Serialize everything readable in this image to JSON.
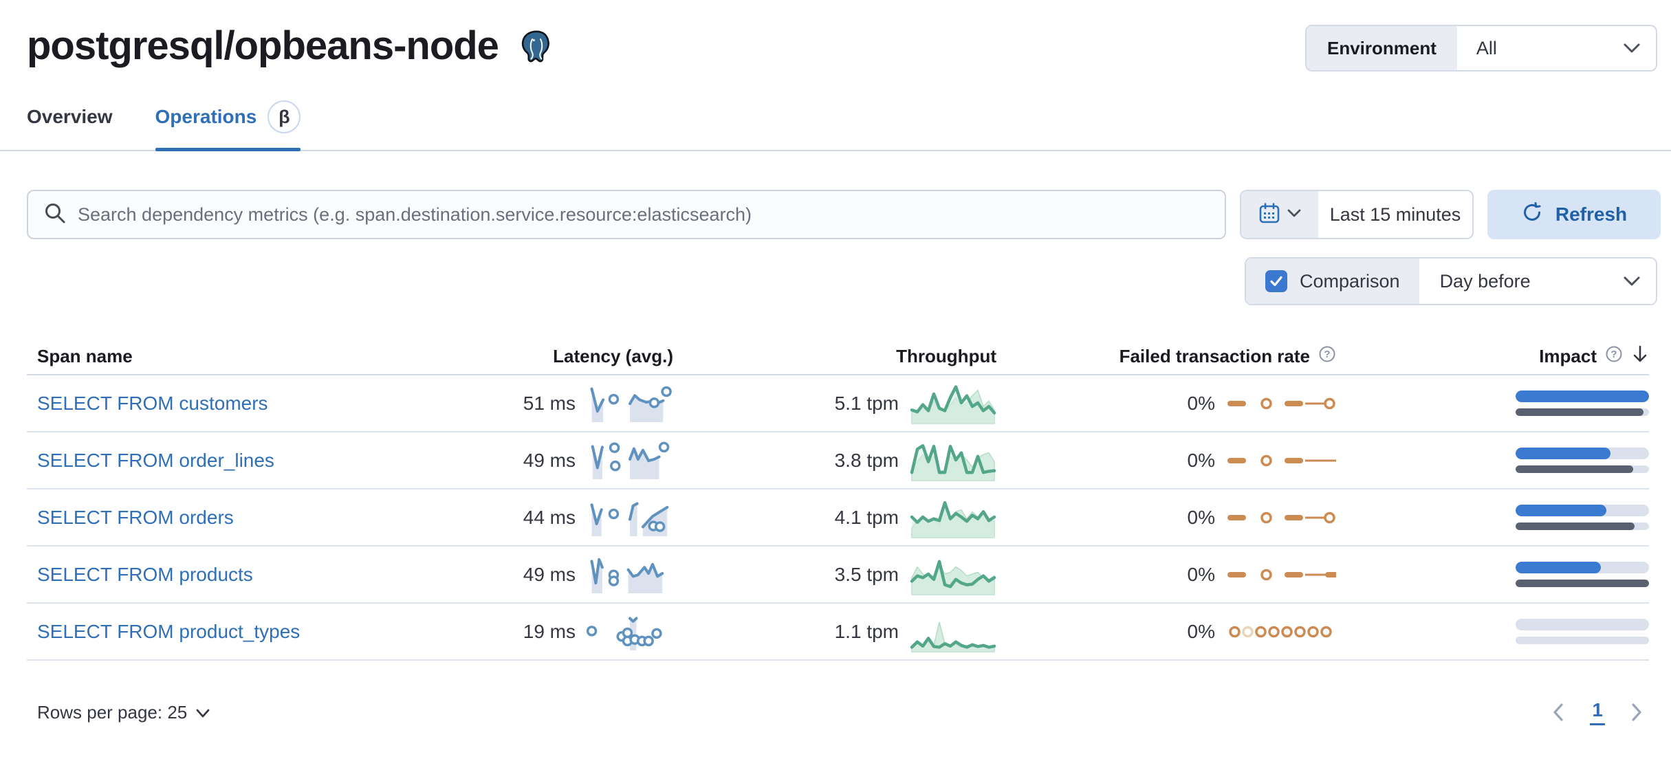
{
  "page": {
    "title": "postgresql/opbeans-node"
  },
  "environment": {
    "label": "Environment",
    "value": "All"
  },
  "tabs": [
    {
      "label": "Overview",
      "active": false
    },
    {
      "label": "Operations",
      "active": true,
      "badge": "β"
    }
  ],
  "search": {
    "placeholder": "Search dependency metrics (e.g. span.destination.service.resource:elasticsearch)"
  },
  "time": {
    "range": "Last 15 minutes",
    "refresh_label": "Refresh"
  },
  "comparison": {
    "label": "Comparison",
    "checked": true,
    "value": "Day before"
  },
  "colors": {
    "link_blue": "#2e6fb7",
    "latency_line": "#6092c0",
    "latency_fill": "#dbe2ee",
    "throughput_line": "#54a68a",
    "throughput_fill": "#d5ece0",
    "ftr_orange": "#cd8b54",
    "ftr_orange_light": "#ecd4b8",
    "impact_current": "#3b7ad1",
    "impact_previous": "#596070"
  },
  "table": {
    "columns": [
      "Span name",
      "Latency (avg.)",
      "Throughput",
      "Failed transaction rate",
      "Impact"
    ],
    "rows": [
      {
        "name": "SELECT FROM customers",
        "latency": "51 ms",
        "throughput": "5.1 tpm",
        "ftr": "0%",
        "latency_spark": {
          "segs": [
            [
              [
                0.03,
                0.06
              ],
              [
                0.1,
                0.8
              ],
              [
                0.17,
                0.42
              ]
            ],
            [
              [
                0.5,
                0.55
              ],
              [
                0.56,
                0.28
              ],
              [
                0.62,
                0.42
              ],
              [
                0.7,
                0.5
              ],
              [
                0.77,
                0.47
              ],
              [
                0.85,
                0.52
              ],
              [
                0.91,
                0.45
              ]
            ]
          ],
          "dots": [
            [
              0.3,
              0.4
            ],
            [
              0.8,
              0.52
            ],
            [
              0.95,
              0.15
            ]
          ]
        },
        "throughput_spark": {
          "line": [
            0.7,
            0.75,
            0.55,
            0.72,
            0.25,
            0.65,
            0.72,
            0.35,
            0.05,
            0.5,
            0.3,
            0.6,
            0.5,
            0.72,
            0.6,
            0.78
          ],
          "area": [
            0.75,
            0.8,
            0.65,
            0.75,
            0.45,
            0.7,
            0.75,
            0.55,
            0.35,
            0.6,
            0.5,
            0.3,
            0.15,
            0.6,
            0.45,
            0.7
          ]
        },
        "ftr_spark": [
          "dash",
          "sp",
          "ring",
          "sp",
          "dash",
          "wire",
          "ring",
          "ring"
        ],
        "impact": {
          "current": 100,
          "previous": 96
        }
      },
      {
        "name": "SELECT FROM order_lines",
        "latency": "49 ms",
        "throughput": "3.8 tpm",
        "ftr": "0%",
        "latency_spark": {
          "segs": [
            [
              [
                0.04,
                0.08
              ],
              [
                0.1,
                0.78
              ],
              [
                0.16,
                0.1
              ]
            ],
            [
              [
                0.5,
                0.5
              ],
              [
                0.55,
                0.15
              ],
              [
                0.6,
                0.5
              ],
              [
                0.66,
                0.2
              ],
              [
                0.73,
                0.55
              ],
              [
                0.8,
                0.5
              ],
              [
                0.86,
                0.42
              ]
            ]
          ],
          "dots": [
            [
              0.31,
              0.12
            ],
            [
              0.32,
              0.72
            ],
            [
              0.92,
              0.1
            ]
          ]
        },
        "throughput_spark": {
          "line": [
            0.85,
            0.2,
            0.1,
            0.55,
            0.12,
            0.85,
            0.85,
            0.12,
            0.5,
            0.3,
            0.85,
            0.85,
            0.4,
            0.85,
            0.82,
            0.8
          ],
          "area": [
            0.75,
            0.55,
            0.35,
            0.6,
            0.4,
            0.8,
            0.8,
            0.4,
            0.55,
            0.35,
            0.5,
            0.7,
            0.45,
            0.35,
            0.3,
            0.55
          ]
        },
        "ftr_spark": [
          "dash",
          "sp",
          "ring",
          "sp",
          "dash",
          "wire",
          "wire",
          "ring"
        ],
        "impact": {
          "current": 71,
          "previous": 88
        }
      },
      {
        "name": "SELECT FROM orders",
        "latency": "44 ms",
        "throughput": "4.1 tpm",
        "ftr": "0%",
        "latency_spark": {
          "segs": [
            [
              [
                0.03,
                0.12
              ],
              [
                0.09,
                0.75
              ],
              [
                0.15,
                0.28
              ]
            ],
            [
              [
                0.5,
                0.6
              ],
              [
                0.54,
                0.15
              ],
              [
                0.59,
                0.08
              ]
            ],
            [
              [
                0.66,
                0.85
              ],
              [
                0.78,
                0.5
              ],
              [
                0.9,
                0.3
              ],
              [
                0.96,
                0.2
              ]
            ]
          ],
          "dots": [
            [
              0.3,
              0.42
            ],
            [
              0.79,
              0.82
            ],
            [
              0.87,
              0.84
            ]
          ]
        },
        "throughput_spark": {
          "line": [
            0.5,
            0.65,
            0.5,
            0.62,
            0.55,
            0.6,
            0.1,
            0.55,
            0.4,
            0.5,
            0.62,
            0.45,
            0.55,
            0.35,
            0.6,
            0.5
          ],
          "area": [
            0.8,
            0.6,
            0.55,
            0.65,
            0.6,
            0.7,
            0.15,
            0.6,
            0.35,
            0.3,
            0.55,
            0.35,
            0.5,
            0.45,
            0.65,
            0.6
          ]
        },
        "ftr_spark": [
          "dash",
          "sp",
          "ring",
          "sp",
          "dash",
          "wire",
          "ring",
          "ring"
        ],
        "impact": {
          "current": 68,
          "previous": 89
        }
      },
      {
        "name": "SELECT FROM products",
        "latency": "49 ms",
        "throughput": "3.5 tpm",
        "ftr": "0%",
        "latency_spark": {
          "segs": [
            [
              [
                0.03,
                0.1
              ],
              [
                0.08,
                0.82
              ],
              [
                0.12,
                0.04
              ],
              [
                0.16,
                0.3
              ]
            ],
            [
              [
                0.48,
                0.38
              ],
              [
                0.54,
                0.6
              ],
              [
                0.6,
                0.55
              ],
              [
                0.68,
                0.3
              ],
              [
                0.73,
                0.5
              ],
              [
                0.78,
                0.2
              ],
              [
                0.84,
                0.6
              ],
              [
                0.9,
                0.5
              ]
            ]
          ],
          "dots": [
            [
              0.3,
              0.55
            ],
            [
              0.3,
              0.75
            ]
          ]
        },
        "throughput_spark": {
          "line": [
            0.7,
            0.55,
            0.6,
            0.5,
            0.65,
            0.15,
            0.8,
            0.85,
            0.65,
            0.75,
            0.8,
            0.78,
            0.65,
            0.55,
            0.7,
            0.6
          ],
          "area": [
            0.6,
            0.3,
            0.5,
            0.6,
            0.55,
            0.2,
            0.5,
            0.45,
            0.3,
            0.4,
            0.55,
            0.5,
            0.45,
            0.6,
            0.65,
            0.55
          ]
        },
        "ftr_spark": [
          "dash",
          "sp",
          "ring",
          "sp",
          "dash",
          "wire",
          "dash"
        ],
        "impact": {
          "current": 64,
          "previous": 100
        }
      },
      {
        "name": "SELECT FROM product_types",
        "latency": "19 ms",
        "throughput": "1.1 tpm",
        "ftr": "0%",
        "latency_spark": {
          "segs": [
            [
              [
                0.5,
                0.1
              ],
              [
                0.54,
                0.2
              ],
              [
                0.58,
                0.1
              ]
            ]
          ],
          "dots": [
            [
              0.03,
              0.52
            ],
            [
              0.4,
              0.7
            ],
            [
              0.47,
              0.58
            ],
            [
              0.47,
              0.85
            ],
            [
              0.56,
              0.8
            ],
            [
              0.65,
              0.85
            ],
            [
              0.73,
              0.85
            ],
            [
              0.83,
              0.6
            ]
          ]
        },
        "throughput_spark": {
          "line": [
            0.95,
            0.8,
            0.92,
            0.7,
            0.93,
            0.95,
            0.85,
            0.92,
            0.8,
            0.9,
            0.95,
            0.88,
            0.93,
            0.9,
            0.95,
            0.92
          ],
          "area": [
            0.95,
            0.85,
            0.9,
            0.8,
            0.9,
            0.25,
            0.85,
            0.92,
            0.88,
            0.95,
            0.9,
            0.92,
            0.95,
            0.9,
            0.92,
            0.95
          ]
        },
        "ftr_spark": [
          "ring",
          "ringlight",
          "ring",
          "ring",
          "ring",
          "ring",
          "ring",
          "ring"
        ],
        "impact": {
          "current": 0,
          "previous": 0
        }
      }
    ]
  },
  "footer": {
    "rows_per_page": "Rows per page: 25",
    "page": "1"
  }
}
